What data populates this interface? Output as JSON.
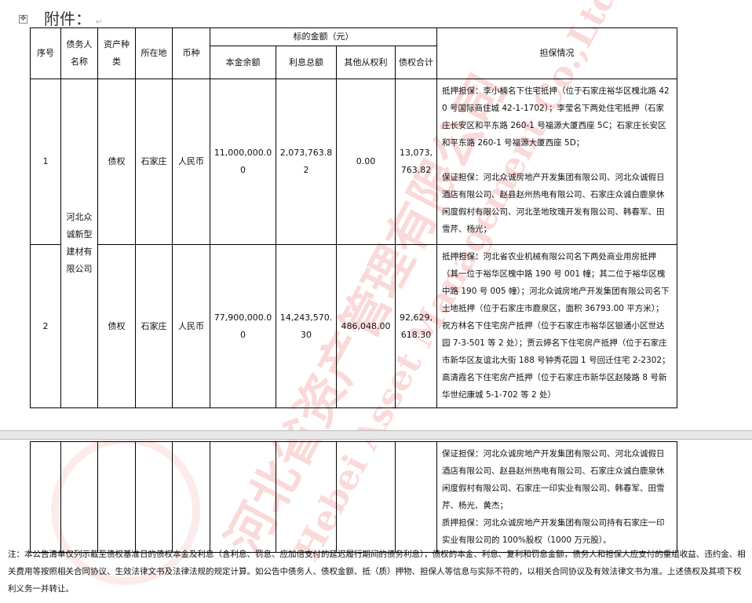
{
  "watermark": {
    "cn": "河北省资产管理有限公司",
    "en": "Hebei Asset Management Co.,Ltd",
    "color": "#e53935"
  },
  "title": "附件：",
  "table": {
    "headers": {
      "seq": "序号",
      "debtor": "债务人名称",
      "asset_type": "资产种类",
      "location": "所在地",
      "currency": "币种",
      "amount_group": "标的金额（元）",
      "principal": "本金余额",
      "interest": "利息总额",
      "other": "其他从权利",
      "total": "债权合计",
      "guarantee": "担保情况"
    },
    "debtor_name": "河北众诚新型建材有限公司",
    "rows": [
      {
        "seq": "1",
        "asset_type": "债权",
        "location": "石家庄",
        "currency": "人民币",
        "principal": "11,000,000.00",
        "interest": "2,073,763.82",
        "other": "0.00",
        "total": "13,073,763.82",
        "guarantee": [
          "抵押担保：李小楠名下住宅抵押（位于石家庄裕华区槐北路 420 号国际商住城 42-1-1702）；李莹名下两处住宅抵押（石家庄长安区和平东路 260-1 号福源大厦西座 5C；石家庄长安区和平东路 260-1 号福源大厦西座 5D；",
          "保证担保：河北众诚房地产开发集团有限公司、河北众诚假日酒店有限公司、赵县赵州热电有限公司、石家庄众诚白鹿泉休闲度假村有限公司、河北圣地玫瑰开发有限公司、韩春军、田雪芹、杨光；"
        ]
      },
      {
        "seq": "2",
        "asset_type": "债权",
        "location": "石家庄",
        "currency": "人民币",
        "principal": "77,900,000.00",
        "interest": "14,243,570.30",
        "other": "486,048.00",
        "total": "92,629,618.30",
        "guarantee": [
          "抵押担保：河北省农业机械有限公司名下两处商业用房抵押（其一位于裕华区槐中路 190 号 001 幢；其二位于裕华区槐中路 190 号 005 幢）；河北众诚房地产开发集团有限公司名下土地抵押（位于石家庄市鹿泉区，面积 36793.00 平方米）；祝方林名下住宅房产抵押（位于石家庄市裕华区银通小区世达园 7-3-501 等 2 处）；贾云婷名下住宅房产抵押（位于石家庄市新华区友谊北大街 188 号钟秀花园 1 号回迁住宅 2-2302；高清霞名下住宅房产抵押（位于石家庄市新华区赵陵路 8 号新华世纪康城 5-1-702 等 2 处）"
        ]
      }
    ],
    "continued_guarantee": [
      "保证担保：河北众诚房地产开发集团有限公司、河北众诚假日酒店有限公司、赵县赵州热电有限公司、石家庄众诚白鹿泉休闲度假村有限公司、石家庄一印实业有限公司、韩春军、田雪芹、杨光、黄杰；",
      "质押担保：河北众诚房地产开发集团有限公司持有石家庄一印实业有限公司的 100%股权（1000 万元股）。"
    ]
  },
  "note": "注：本公告清单仅列示截至债权基准日的债权本金及利息（含利息、罚息、应加倍支付的延迟履行期间的债务利息），债权的本金、利息、复利和罚息金额，债务人和担保人应支付的重组收益、违约金、相关费用等按照相关合同协议、生效法律文书及法律法规的规定计算。如公告中债务人、债权金额、抵（质）押物、担保人等信息与实际不符的，以相关合同协议及有效法律文书为准。上述债权及其项下权利义务一并转让。"
}
